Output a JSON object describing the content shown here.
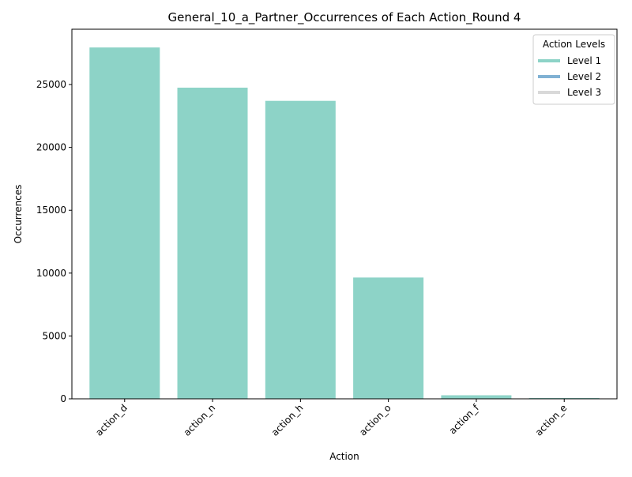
{
  "chart_data": {
    "type": "bar",
    "title": "General_10_a_Partner_Occurrences of Each Action_Round 4",
    "xlabel": "Action",
    "ylabel": "Occurrences",
    "categories": [
      "action_d",
      "action_n",
      "action_h",
      "action_o",
      "action_f",
      "action_e"
    ],
    "values": [
      27950,
      24750,
      23700,
      9650,
      280,
      60
    ],
    "bar_levels": [
      "Level 1",
      "Level 1",
      "Level 1",
      "Level 1",
      "Level 1",
      "Level 1"
    ],
    "ylim": [
      0,
      29400
    ],
    "yticks": [
      0,
      5000,
      10000,
      15000,
      20000,
      25000
    ],
    "ytick_labels": [
      "0",
      "5000",
      "10000",
      "15000",
      "20000",
      "25000"
    ],
    "grid": false,
    "legend": {
      "title": "Action Levels",
      "position": "top-right",
      "entries": [
        {
          "label": "Level 1",
          "color": "#8dd3c7"
        },
        {
          "label": "Level 2",
          "color": "#80b1d3"
        },
        {
          "label": "Level 3",
          "color": "#d9d9d9"
        }
      ]
    },
    "colors": {
      "Level 1": "#8dd3c7",
      "Level 2": "#80b1d3",
      "Level 3": "#d9d9d9"
    }
  }
}
